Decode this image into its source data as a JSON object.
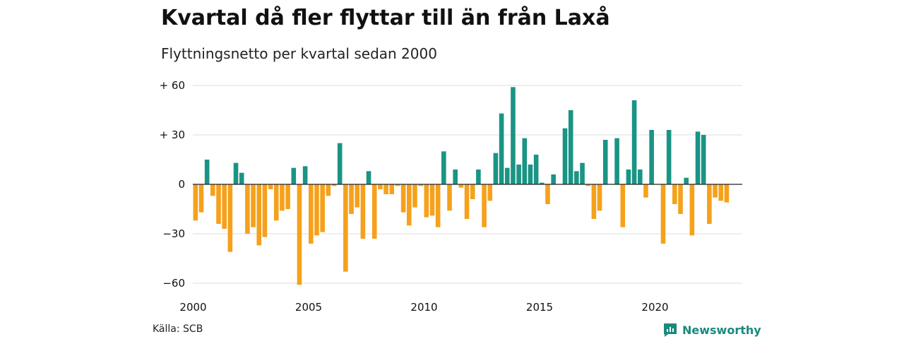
{
  "header": {
    "title": "Kvartal då fler flyttar till än från Laxå",
    "subtitle": "Flyttningsnetto per kvartal sedan 2000"
  },
  "footer": {
    "source": "Källa: SCB",
    "brand": "Newsworthy"
  },
  "colors": {
    "positive": "#1a9484",
    "negative": "#f5a11c",
    "grid": "#dddddd",
    "zero_line": "#222222",
    "brand": "#1a8a7d"
  },
  "chart_data": {
    "type": "bar",
    "title": "Kvartal då fler flyttar till än från Laxå",
    "subtitle": "Flyttningsnetto per kvartal sedan 2000",
    "ylim": [
      -60,
      60
    ],
    "yticks": [
      60,
      30,
      0,
      -30,
      -60
    ],
    "ytick_labels": [
      "+ 60",
      "+ 30",
      "0",
      "−30",
      "−60"
    ],
    "xticks": [
      2000,
      2005,
      2010,
      2015,
      2020
    ],
    "x_start": "2000 Q1",
    "frequency": "quarterly",
    "grid": true,
    "values": [
      -22,
      -17,
      15,
      -7,
      -24,
      -27,
      -41,
      13,
      7,
      -30,
      -26,
      -37,
      -32,
      -3,
      -22,
      -16,
      -15,
      10,
      -61,
      11,
      -36,
      -31,
      -29,
      -7,
      -1,
      25,
      -53,
      -18,
      -14,
      -33,
      8,
      -33,
      -3,
      -6,
      -6,
      -1,
      -17,
      -25,
      -14,
      -1,
      -20,
      -19,
      -26,
      20,
      -16,
      9,
      -2,
      -21,
      -9,
      9,
      -26,
      -10,
      19,
      43,
      10,
      59,
      12,
      28,
      12,
      18,
      1,
      -12,
      6,
      0,
      34,
      45,
      8,
      13,
      -1,
      -21,
      -16,
      27,
      0,
      28,
      -26,
      9,
      51,
      9,
      -8,
      33,
      0,
      -36,
      33,
      -12,
      -18,
      4,
      -31,
      32,
      30,
      -24,
      -8,
      -10,
      -11
    ]
  }
}
